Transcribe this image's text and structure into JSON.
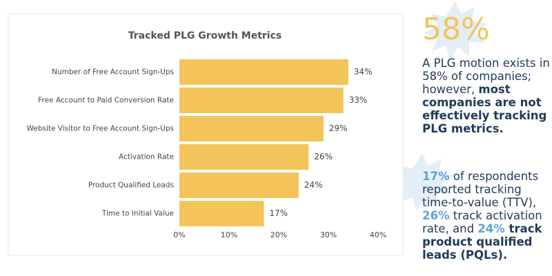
{
  "chart_data": {
    "type": "bar",
    "orientation": "horizontal",
    "title": "Tracked PLG Growth Metrics",
    "categories": [
      "Number of Free Account Sign-Ups",
      "Free Account to Paid Conversion Rate",
      "Website Visitor to Free Account Sign-Ups",
      "Activation Rate",
      "Product Qualified Leads",
      "Time to Initial Value"
    ],
    "values": [
      34,
      33,
      29,
      26,
      24,
      17
    ],
    "value_labels": [
      "34%",
      "33%",
      "29%",
      "26%",
      "24%",
      "17%"
    ],
    "color": "#f2c45a",
    "xlim": [
      0,
      40
    ],
    "xticks": [
      {
        "value": 0,
        "label": "0%"
      },
      {
        "value": 10,
        "label": "10%"
      },
      {
        "value": 20,
        "label": "20%"
      },
      {
        "value": 30,
        "label": "30%"
      },
      {
        "value": 40,
        "label": "40%"
      }
    ],
    "grid": false
  },
  "callout": {
    "stat": "58%",
    "paragraphs": [
      [
        {
          "text": "A PLG motion exists in 58% of companies; however, ",
          "style": "plain"
        },
        {
          "text": "most companies are not effectively tracking PLG metrics.",
          "style": "bold"
        }
      ],
      [
        {
          "text": "17%",
          "style": "accent"
        },
        {
          "text": " of respondents reported tracking time-to-value (TTV), ",
          "style": "plain"
        },
        {
          "text": "26%",
          "style": "accent"
        },
        {
          "text": " track activation rate, and ",
          "style": "plain"
        },
        {
          "text": "24%",
          "style": "accent"
        },
        {
          "text": " track product qualified leads (PQLs).",
          "style": "bold"
        }
      ]
    ]
  }
}
